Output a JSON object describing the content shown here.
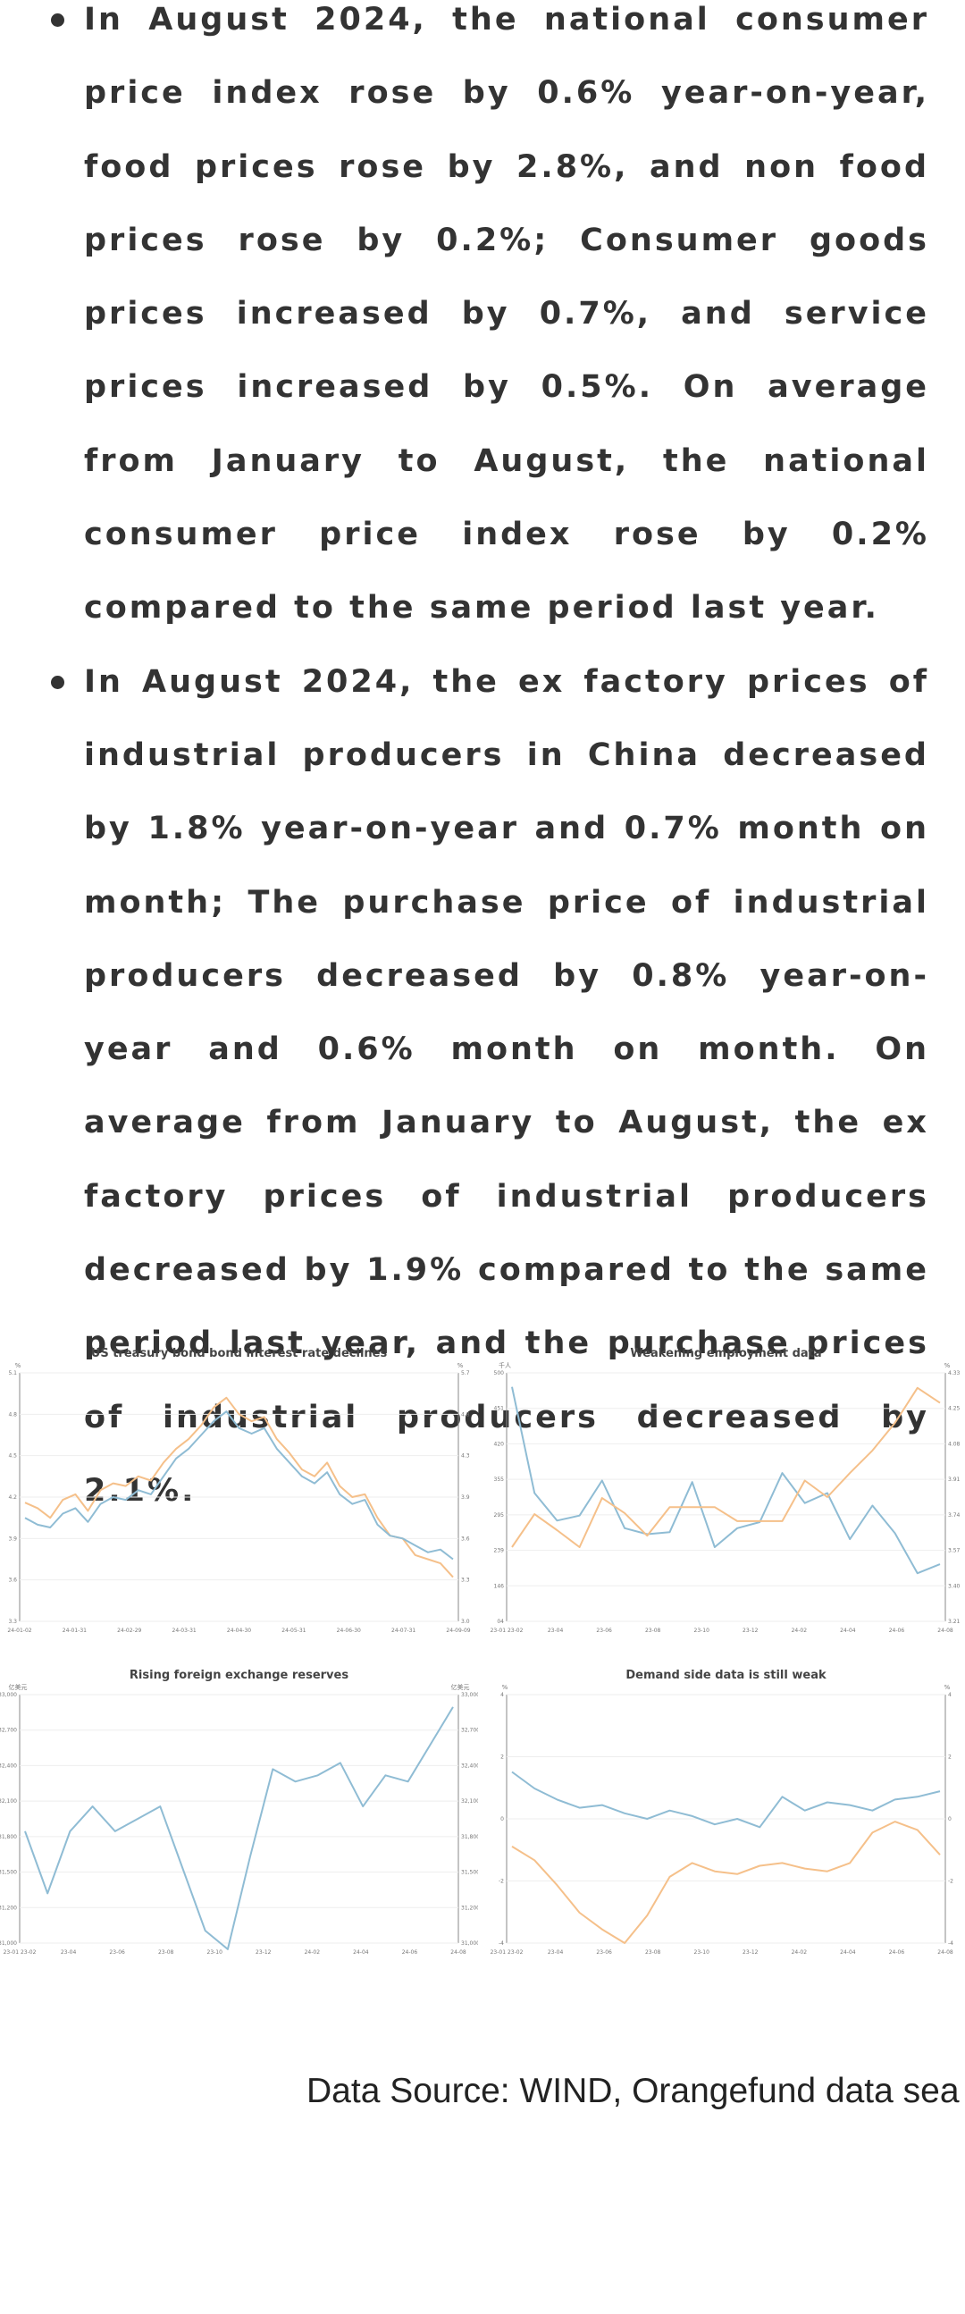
{
  "bullets": [
    "In August 2024, the national consumer price index rose by 0.6% year-on-year, food prices rose by 2.8%, and non food prices rose by 0.2%; Consumer goods prices increased by 0.7%, and service prices increased by 0.5%. On average from January to August, the national consumer price index rose by 0.2% compared to the same period last year.",
    "In August 2024, the ex factory prices of industrial producers in China decreased by 1.8% year-on-year and 0.7% month on month; The purchase price of industrial producers decreased by 0.8% year-on-year and 0.6% month on month. On average from January to August, the ex factory prices of industrial producers decreased by 1.9% compared to the same period last year, and the purchase prices of industrial producers decreased by 2.1%."
  ],
  "colors": {
    "blue": "#8fbcd4",
    "orange": "#f5c08a",
    "text": "#333333"
  },
  "chart_data": [
    {
      "type": "line",
      "title": "US treasury bond bond interest rate declines",
      "left_unit": "%",
      "right_unit": "%",
      "ylim": [
        3.3,
        5.1
      ],
      "yticks": [
        "5.1",
        "4.8",
        "4.5",
        "4.2",
        "3.9",
        "3.6",
        "3.3"
      ],
      "y2ticks": [
        "5.7",
        "4.8",
        "4.3",
        "3.9",
        "3.6",
        "3.3",
        "3.0"
      ],
      "xticks": [
        "24-01-02",
        "24-01-31",
        "24-02-29",
        "24-03-31",
        "24-04-30",
        "24-05-31",
        "24-06-30",
        "24-07-31",
        "24-09-09"
      ],
      "series": [
        {
          "color": "#f5c08a",
          "values": [
            4.16,
            4.12,
            4.05,
            4.18,
            4.22,
            4.1,
            4.25,
            4.3,
            4.28,
            4.35,
            4.32,
            4.45,
            4.55,
            4.62,
            4.72,
            4.85,
            4.92,
            4.8,
            4.75,
            4.78,
            4.62,
            4.52,
            4.4,
            4.35,
            4.45,
            4.28,
            4.2,
            4.22,
            4.05,
            3.92,
            3.9,
            3.78,
            3.75,
            3.72,
            3.62
          ]
        },
        {
          "color": "#8fbcd4",
          "values": [
            4.05,
            4.0,
            3.98,
            4.08,
            4.12,
            4.02,
            4.15,
            4.2,
            4.18,
            4.25,
            4.22,
            4.35,
            4.48,
            4.55,
            4.65,
            4.75,
            4.82,
            4.7,
            4.66,
            4.7,
            4.55,
            4.45,
            4.35,
            4.3,
            4.38,
            4.22,
            4.15,
            4.18,
            4.0,
            3.92,
            3.9,
            3.85,
            3.8,
            3.82,
            3.75
          ]
        }
      ]
    },
    {
      "type": "line",
      "title": "Weakening employment data",
      "left_unit": "千人",
      "right_unit": "%",
      "ylim": [
        4,
        500
      ],
      "yticks": [
        "500",
        "451",
        "420",
        "355",
        "295",
        "239",
        "146",
        "04"
      ],
      "y2ticks": [
        "4.33",
        "4.25",
        "4.08",
        "3.91",
        "3.74",
        "3.57",
        "3.40",
        "3.21"
      ],
      "xticks": [
        "23-01 23-02",
        "23-04",
        "23-06",
        "23-08",
        "23-10",
        "23-12",
        "24-02",
        "24-04",
        "24-06",
        "24-08"
      ],
      "series": [
        {
          "color": "#8fbcd4",
          "values": [
            472,
            260,
            205,
            215,
            285,
            190,
            178,
            182,
            282,
            152,
            190,
            202,
            300,
            240,
            260,
            168,
            235,
            180,
            100,
            118
          ]
        },
        {
          "color": "#f5c08a",
          "values": [
            152,
            218,
            186,
            152,
            250,
            220,
            175,
            232,
            232,
            232,
            204,
            204,
            204,
            285,
            252,
            300,
            345,
            400,
            470,
            440
          ]
        }
      ]
    },
    {
      "type": "line",
      "title": "Rising foreign exchange reserves",
      "left_unit": "亿美元",
      "right_unit": "亿美元",
      "ylim": [
        31000,
        33000
      ],
      "yticks": [
        "33,000",
        "32,700",
        "32,400",
        "32,100",
        "31,800",
        "31,500",
        "31,200",
        "31,000"
      ],
      "y2ticks": [
        "33,000",
        "32,700",
        "32,400",
        "32,100",
        "31,800",
        "31,500",
        "31,200",
        "31,000"
      ],
      "xticks": [
        "23-01 23-02",
        "23-04",
        "23-06",
        "23-08",
        "23-10",
        "23-12",
        "24-02",
        "24-04",
        "24-06",
        "24-08"
      ],
      "series": [
        {
          "color": "#8fbcd4",
          "values": [
            31900,
            31400,
            31900,
            32100,
            31900,
            32000,
            32100,
            31600,
            31100,
            30950,
            31700,
            32400,
            32300,
            32350,
            32450,
            32100,
            32350,
            32300,
            32600,
            32900
          ]
        }
      ]
    },
    {
      "type": "line",
      "title": "Demand side data is still weak",
      "left_unit": "%",
      "right_unit": "%",
      "ylim": [
        -5,
        4
      ],
      "yticks": [
        "4",
        "2",
        "0",
        "-2",
        "-4"
      ],
      "y2ticks": [
        "4",
        "2",
        "0",
        "-2",
        "-4"
      ],
      "xticks": [
        "23-01 23-02",
        "23-04",
        "23-06",
        "23-08",
        "23-10",
        "23-12",
        "24-02",
        "24-04",
        "24-06",
        "24-08"
      ],
      "series": [
        {
          "color": "#8fbcd4",
          "values": [
            1.2,
            0.6,
            0.2,
            -0.1,
            0.0,
            -0.3,
            -0.5,
            -0.2,
            -0.4,
            -0.7,
            -0.5,
            -0.8,
            0.3,
            -0.2,
            0.1,
            0.0,
            -0.2,
            0.2,
            0.3,
            0.5
          ]
        },
        {
          "color": "#f5c08a",
          "values": [
            -1.5,
            -2.0,
            -2.9,
            -3.9,
            -4.5,
            -5.0,
            -4.0,
            -2.6,
            -2.1,
            -2.4,
            -2.5,
            -2.2,
            -2.1,
            -2.3,
            -2.4,
            -2.1,
            -1.0,
            -0.6,
            -0.9,
            -1.8
          ]
        }
      ]
    }
  ],
  "source": "Data Source: WIND, Orangefund data sea"
}
